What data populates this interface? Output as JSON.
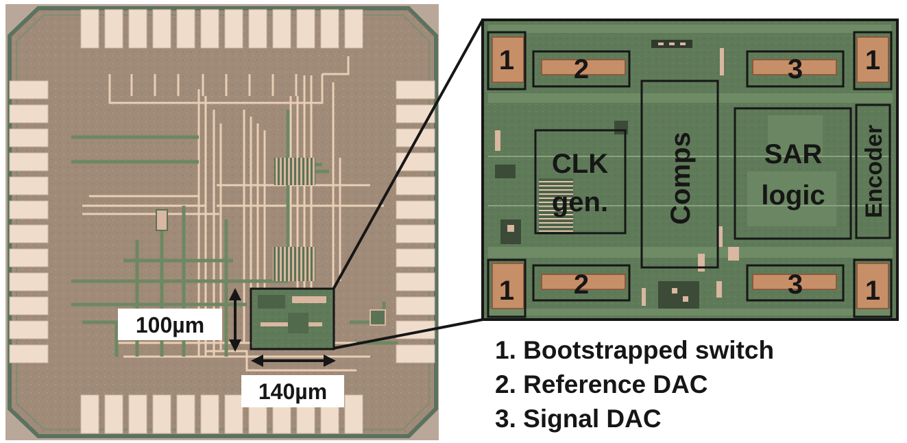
{
  "die_photo": {
    "dimensions": {
      "height": "100µm",
      "width": "140µm"
    }
  },
  "zoom_view": {
    "blocks": {
      "clk_gen": [
        "CLK",
        "gen."
      ],
      "comps": "Comps",
      "sar_logic": [
        "SAR",
        "logic"
      ],
      "encoder": "Encoder"
    },
    "markers": {
      "bootstrapped_switch": "1",
      "reference_dac": "2",
      "signal_dac": "3"
    }
  },
  "legend": [
    "1. Bootstrapped switch",
    "2. Reference DAC",
    "3. Signal DAC"
  ],
  "colors": {
    "die_background": "#a08a78",
    "bond_pad": "#f0dccb",
    "die_edge": "#5b7260",
    "metal_trace": "#e8cfb6",
    "zoom_background": "#5f7a58",
    "box_outline": "#161616"
  }
}
